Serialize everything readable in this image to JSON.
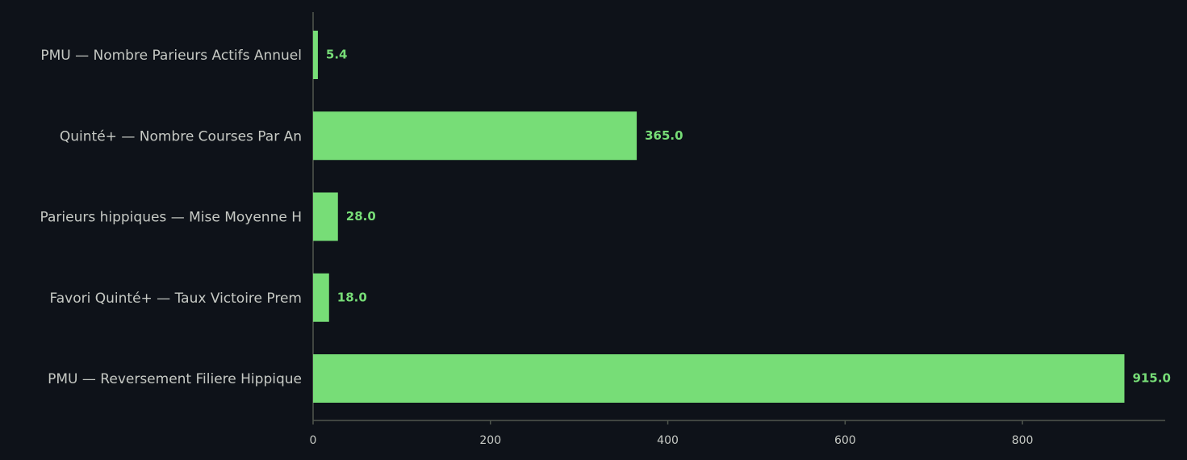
{
  "chart_data": {
    "type": "barh",
    "categories": [
      "PMU — Nombre Parieurs Actifs Annuel",
      "Quinté+ — Nombre Courses Par An",
      "Parieurs hippiques — Mise Moyenne H",
      "Favori Quinté+ — Taux Victoire Prem",
      "PMU — Reversement Filiere Hippique"
    ],
    "values": [
      5.4,
      365,
      28,
      18,
      915
    ],
    "value_labels": [
      "5.4",
      "365.0",
      "28.0",
      "18.0",
      "915.0"
    ],
    "color": "#77dd77",
    "xlim": [
      0,
      961
    ],
    "xticks": [
      0,
      200,
      400,
      600,
      800
    ]
  }
}
